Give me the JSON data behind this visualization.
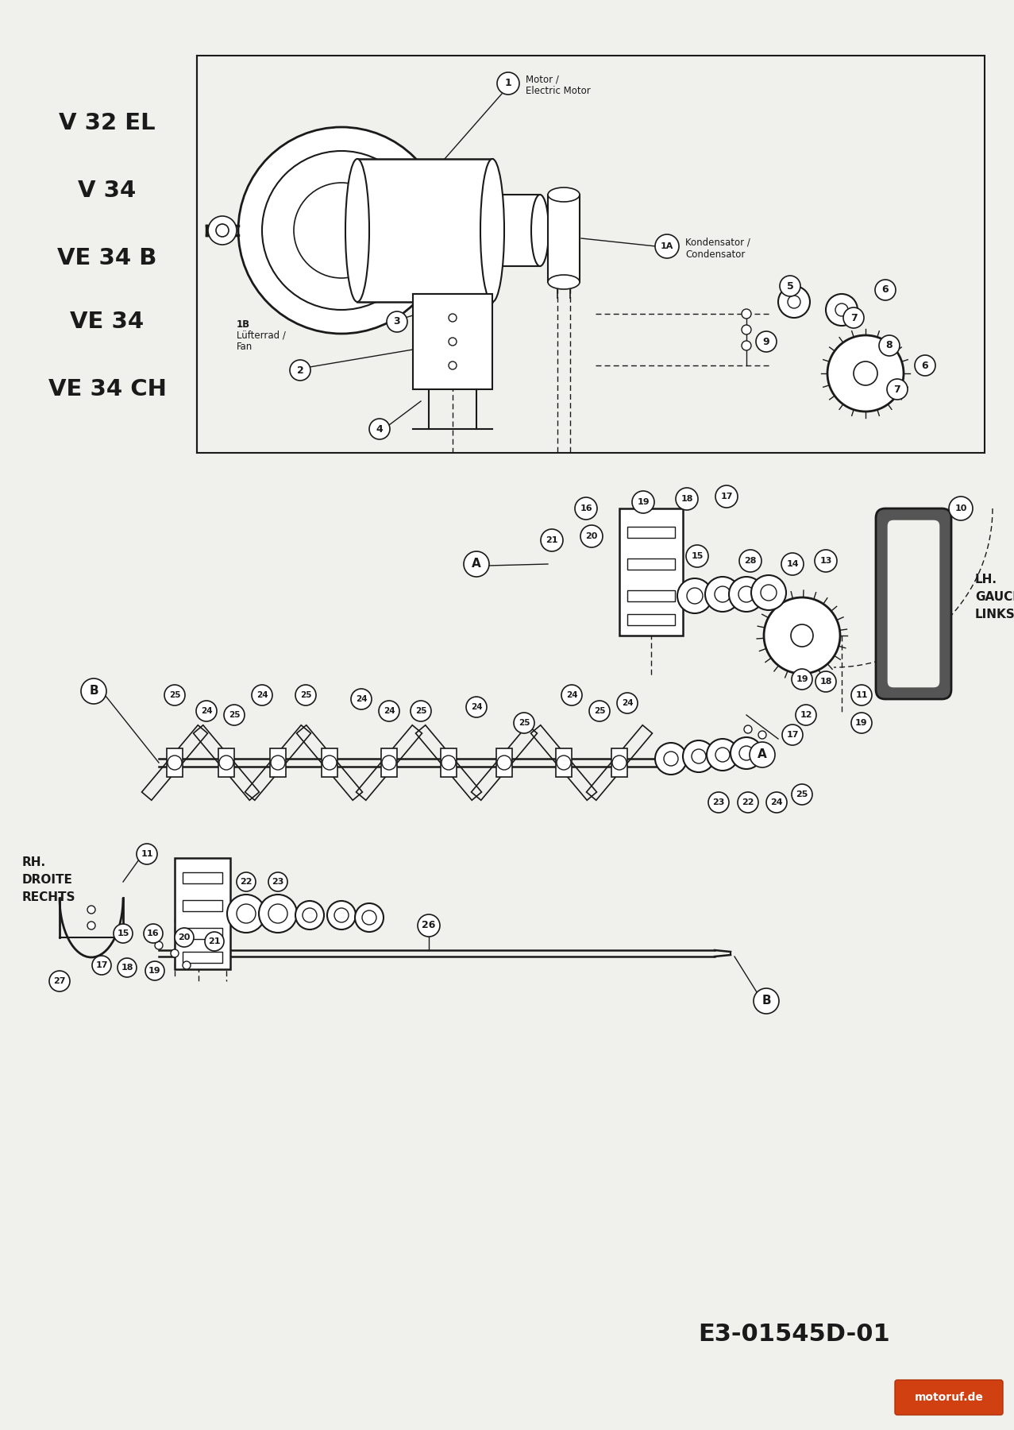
{
  "bg_color": "#f0f0ec",
  "line_color": "#1a1a1a",
  "title_models": [
    "V 32 EL",
    "V 34",
    "VE 34 B",
    "VE 34",
    "VE 34 CH"
  ],
  "code": "E3-01545D-01",
  "watermark": "motoruf.de",
  "lh_label": [
    "LH.",
    "GAUCHE",
    "LINKS"
  ],
  "rh_label": [
    "RH.",
    "DROITE",
    "RECHTS"
  ],
  "motor_label": [
    "Motor /",
    "Electric Motor"
  ],
  "kondensator_label": [
    "Kondensator /",
    "Condensator"
  ],
  "fan_label": [
    "1B",
    "Lüfterrad /",
    "Fan"
  ],
  "figw": 12.77,
  "figh": 18.0,
  "dpi": 100
}
